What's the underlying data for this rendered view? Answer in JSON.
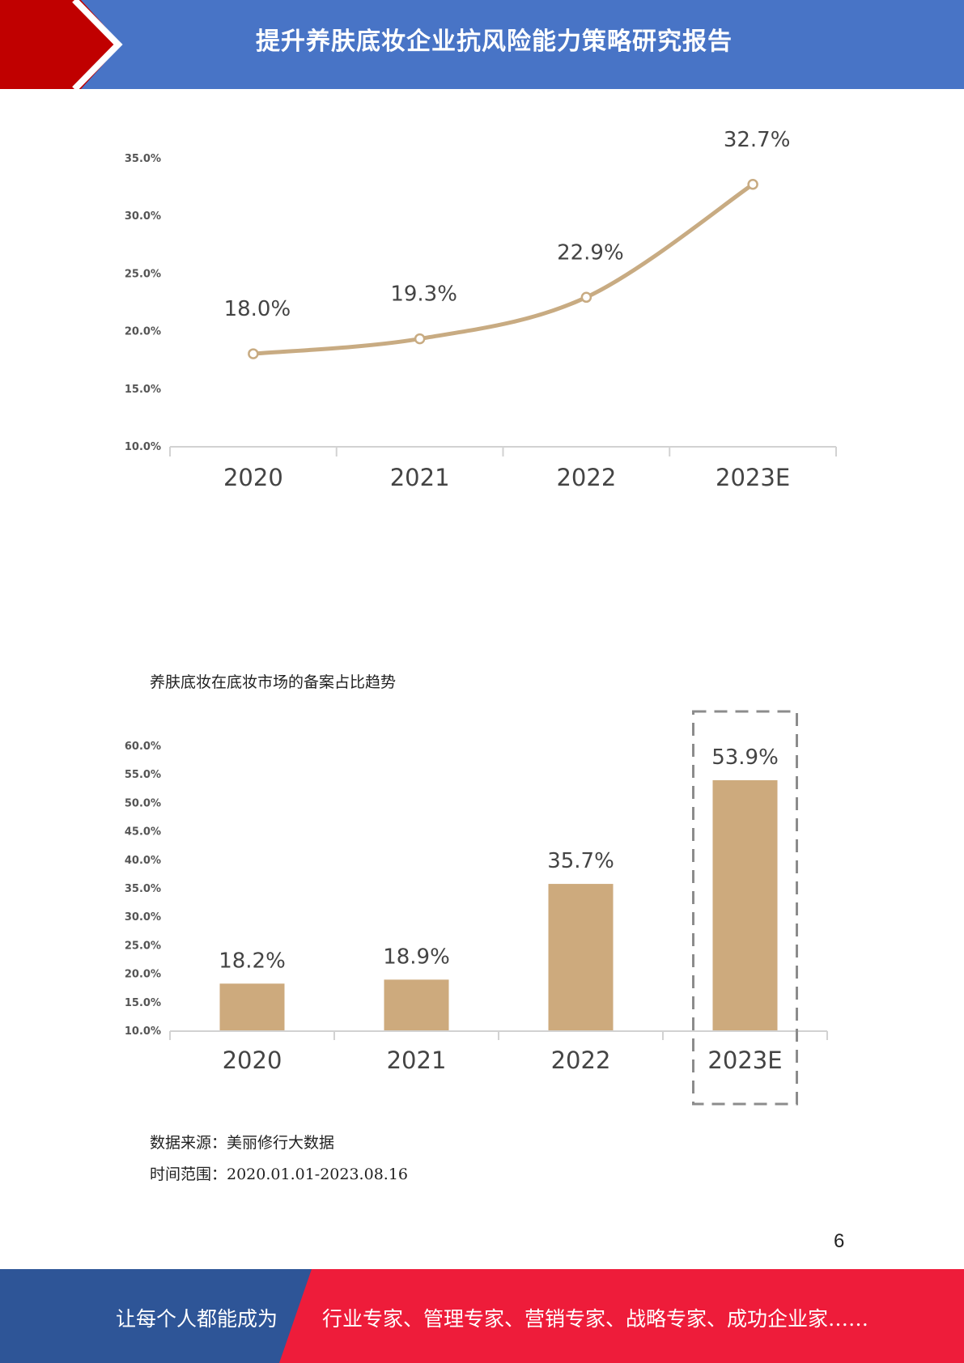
{
  "header": {
    "title": "提升养肤底妆企业抗风险能力策略研究报告",
    "colors": {
      "band": "#4874C6",
      "accent": "#C00000"
    }
  },
  "chart_data": [
    {
      "type": "line",
      "categories": [
        "2020",
        "2021",
        "2022",
        "2023E"
      ],
      "values": [
        18.0,
        19.3,
        22.9,
        32.7
      ],
      "data_labels": [
        "18.0%",
        "19.3%",
        "22.9%",
        "32.7%"
      ],
      "yticks": [
        "10.0%",
        "15.0%",
        "20.0%",
        "25.0%",
        "30.0%",
        "35.0%"
      ],
      "ylim": [
        10,
        35
      ],
      "color": "#C8AB82",
      "grid": false
    },
    {
      "type": "bar",
      "title": "养肤底妆在底妆市场的备案占比趋势",
      "categories": [
        "2020",
        "2021",
        "2022",
        "2023E"
      ],
      "values": [
        18.2,
        18.9,
        35.7,
        53.9
      ],
      "data_labels": [
        "18.2%",
        "18.9%",
        "35.7%",
        "53.9%"
      ],
      "yticks": [
        "10.0%",
        "15.0%",
        "20.0%",
        "25.0%",
        "30.0%",
        "35.0%",
        "40.0%",
        "45.0%",
        "50.0%",
        "55.0%",
        "60.0%"
      ],
      "ylim": [
        10,
        60
      ],
      "color": "#CDAA7D",
      "highlight": "2023E",
      "grid": false
    }
  ],
  "notes": {
    "source": "数据来源：美丽修行大数据",
    "range": "时间范围：2020.01.01-2023.08.16"
  },
  "page_number": "6",
  "footer": {
    "left_text": "让每个人都能成为",
    "right_text": "行业专家、管理专家、营销专家、战略专家、成功企业家……",
    "colors": {
      "left": "#2E5597",
      "right": "#EE1C3A"
    }
  }
}
